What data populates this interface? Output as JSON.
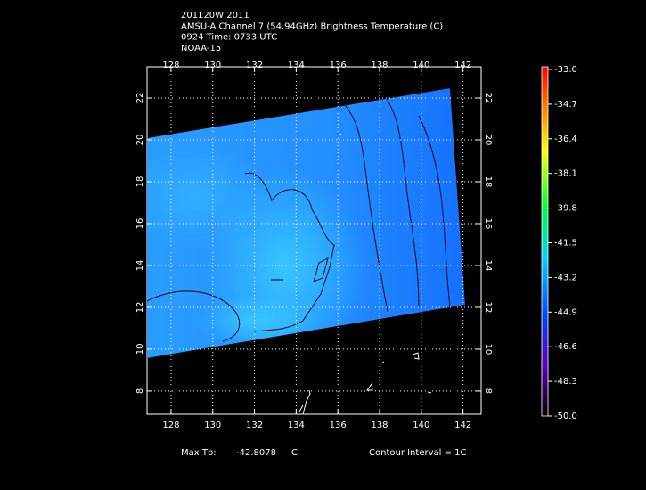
{
  "title": {
    "lines": [
      "201120W 2011",
      "AMSU-A Channel 7 (54.94GHz) Brightness Temperature (C)",
      "0924 Time: 0733 UTC",
      "NOAA-15"
    ]
  },
  "map": {
    "xlim": [
      126.85,
      142.87
    ],
    "ylim": [
      6.89,
      23.49
    ],
    "xticks": [
      128,
      130,
      132,
      134,
      136,
      138,
      140,
      142
    ],
    "yticks": [
      8,
      10,
      12,
      14,
      16,
      18,
      20,
      22
    ]
  },
  "colorbar": {
    "range": [
      -50,
      -33
    ],
    "ticks": [
      {
        "value": -33,
        "label": "-33.0"
      },
      -34.7,
      -36.4,
      -38.1,
      -39.8,
      -41.5,
      -43.2,
      -44.9,
      -46.6,
      -48.3,
      {
        "value": -50,
        "label": "-50.0"
      }
    ]
  },
  "footer": {
    "max_label": "Max Tb:",
    "max_value": -42.8078,
    "max_unit": "C",
    "contour": "Contour Interval = 1C"
  }
}
